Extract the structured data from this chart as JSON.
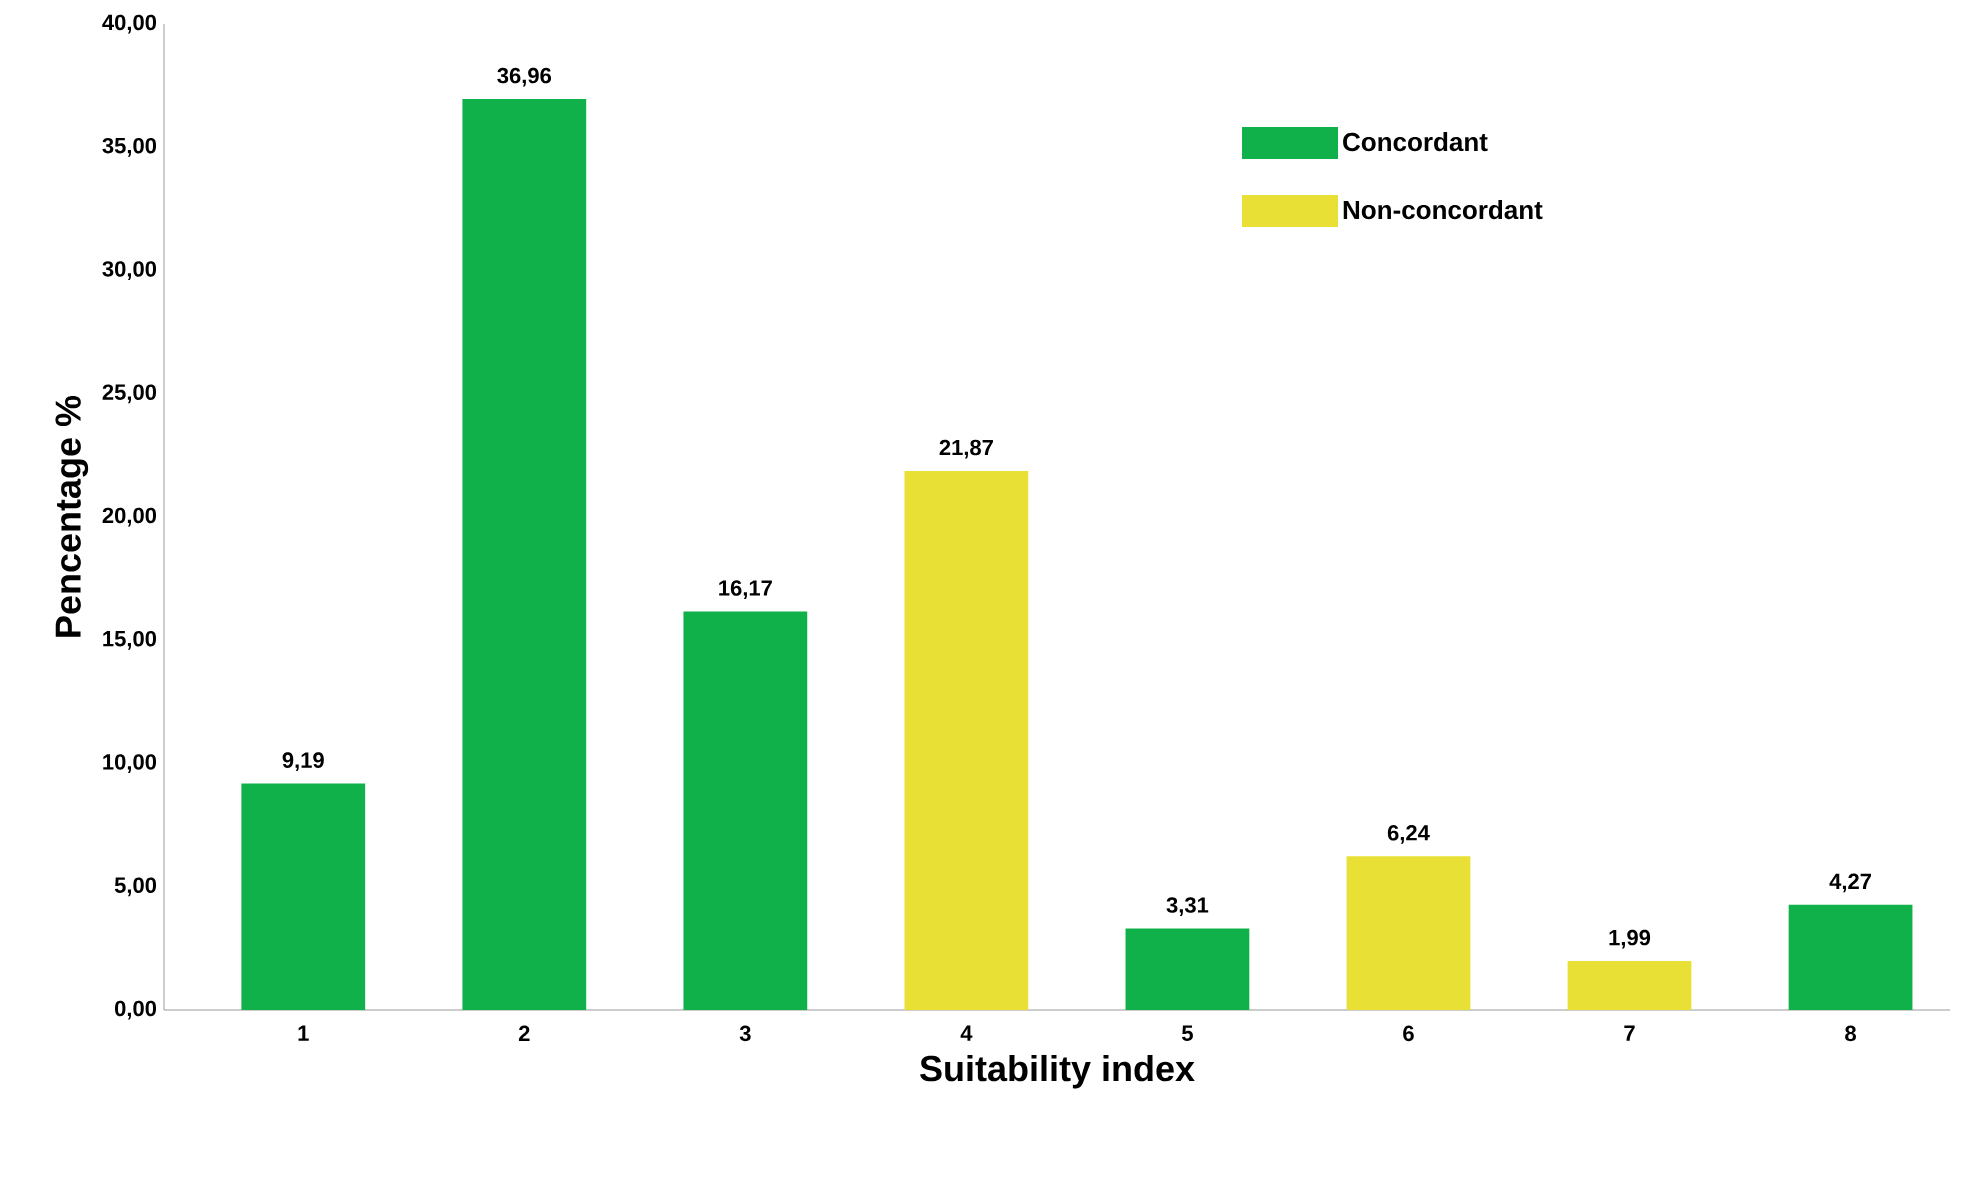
{
  "chart_data": {
    "type": "bar",
    "xlabel": "Suitability index",
    "ylabel": "Pencentage %",
    "categories": [
      "1",
      "2",
      "3",
      "4",
      "5",
      "6",
      "7",
      "8"
    ],
    "series": [
      {
        "name": "Concordant",
        "color": "#10b14b",
        "values": [
          9.19,
          36.96,
          16.17,
          null,
          3.31,
          null,
          null,
          4.27
        ],
        "value_labels": [
          "9,19",
          "36,96",
          "16,17",
          null,
          "3,31",
          null,
          null,
          "4,27"
        ]
      },
      {
        "name": "Non-concordant",
        "color": "#e9e035",
        "values": [
          null,
          null,
          null,
          21.87,
          null,
          6.24,
          1.99,
          null
        ],
        "value_labels": [
          null,
          null,
          null,
          "21,87",
          null,
          "6,24",
          "1,99",
          null
        ]
      }
    ],
    "ylim": [
      0,
      40
    ],
    "yticks": [
      {
        "value": 0,
        "label": "0,00"
      },
      {
        "value": 5,
        "label": "5,00"
      },
      {
        "value": 10,
        "label": "10,00"
      },
      {
        "value": 15,
        "label": "15,00"
      },
      {
        "value": 20,
        "label": "20,00"
      },
      {
        "value": 25,
        "label": "25,00"
      },
      {
        "value": 30,
        "label": "30,00"
      },
      {
        "value": 35,
        "label": "35,00"
      },
      {
        "value": 40,
        "label": "40,00"
      }
    ],
    "legend": "top right"
  }
}
